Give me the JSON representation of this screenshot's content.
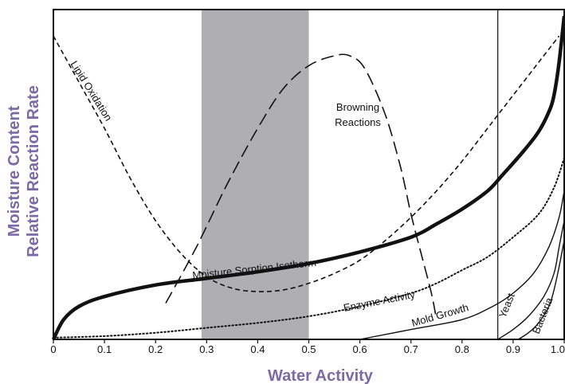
{
  "chart_data": {
    "type": "line",
    "title": "",
    "xlabel": "Water Activity",
    "ylabel_lines": [
      "Moisture Content",
      "Relative Reaction Rate"
    ],
    "xlim": [
      0,
      1.0
    ],
    "x_ticks": [
      "0",
      "0.1",
      "0.2",
      "0.3",
      "0.4",
      "0.5",
      "0.6",
      "0.7",
      "0.8",
      "0.9",
      "1.0"
    ],
    "colors": {
      "axis_title": "#7b6aa6",
      "shaded_band": "#aeaeb3",
      "line": "#111111"
    },
    "shaded_band": {
      "x_start": 0.29,
      "x_end": 0.5
    },
    "vertical_reference": {
      "x": 0.87
    },
    "series": [
      {
        "name": "Lipid Oxidation",
        "style": "short-dash",
        "points": [
          [
            0.0,
            0.92
          ],
          [
            0.05,
            0.78
          ],
          [
            0.1,
            0.64
          ],
          [
            0.15,
            0.49
          ],
          [
            0.2,
            0.36
          ],
          [
            0.25,
            0.26
          ],
          [
            0.3,
            0.19
          ],
          [
            0.35,
            0.155
          ],
          [
            0.4,
            0.145
          ],
          [
            0.45,
            0.15
          ],
          [
            0.5,
            0.17
          ],
          [
            0.55,
            0.2
          ],
          [
            0.6,
            0.24
          ],
          [
            0.65,
            0.3
          ],
          [
            0.7,
            0.37
          ],
          [
            0.75,
            0.45
          ],
          [
            0.8,
            0.54
          ],
          [
            0.85,
            0.64
          ],
          [
            0.9,
            0.74
          ],
          [
            0.95,
            0.84
          ],
          [
            0.99,
            0.92
          ]
        ]
      },
      {
        "name": "Browning Reactions",
        "style": "long-dash",
        "points": [
          [
            0.22,
            0.11
          ],
          [
            0.28,
            0.28
          ],
          [
            0.34,
            0.47
          ],
          [
            0.4,
            0.64
          ],
          [
            0.45,
            0.76
          ],
          [
            0.5,
            0.83
          ],
          [
            0.55,
            0.86
          ],
          [
            0.58,
            0.86
          ],
          [
            0.61,
            0.82
          ],
          [
            0.65,
            0.68
          ],
          [
            0.68,
            0.52
          ],
          [
            0.7,
            0.38
          ],
          [
            0.72,
            0.26
          ],
          [
            0.74,
            0.14
          ],
          [
            0.75,
            0.06
          ]
        ]
      },
      {
        "name": "Moisture Sorption Isotherm",
        "style": "thick-solid",
        "points": [
          [
            0.0,
            0.0
          ],
          [
            0.02,
            0.06
          ],
          [
            0.05,
            0.1
          ],
          [
            0.1,
            0.13
          ],
          [
            0.2,
            0.165
          ],
          [
            0.3,
            0.185
          ],
          [
            0.4,
            0.205
          ],
          [
            0.5,
            0.23
          ],
          [
            0.6,
            0.265
          ],
          [
            0.7,
            0.31
          ],
          [
            0.75,
            0.35
          ],
          [
            0.8,
            0.395
          ],
          [
            0.85,
            0.45
          ],
          [
            0.88,
            0.5
          ],
          [
            0.92,
            0.57
          ],
          [
            0.95,
            0.63
          ],
          [
            0.97,
            0.69
          ],
          [
            0.98,
            0.74
          ],
          [
            0.99,
            0.84
          ],
          [
            1.0,
            0.98
          ]
        ]
      },
      {
        "name": "Enzyme Activity",
        "style": "dotted",
        "points": [
          [
            0.0,
            0.005
          ],
          [
            0.1,
            0.01
          ],
          [
            0.2,
            0.02
          ],
          [
            0.3,
            0.035
          ],
          [
            0.4,
            0.05
          ],
          [
            0.5,
            0.07
          ],
          [
            0.6,
            0.1
          ],
          [
            0.7,
            0.14
          ],
          [
            0.75,
            0.17
          ],
          [
            0.8,
            0.21
          ],
          [
            0.85,
            0.25
          ],
          [
            0.9,
            0.31
          ],
          [
            0.95,
            0.38
          ],
          [
            0.98,
            0.46
          ],
          [
            1.0,
            0.55
          ]
        ]
      },
      {
        "name": "Mold Growth",
        "style": "thin-solid",
        "points": [
          [
            0.6,
            0.0
          ],
          [
            0.7,
            0.03
          ],
          [
            0.8,
            0.06
          ],
          [
            0.86,
            0.1
          ],
          [
            0.9,
            0.14
          ],
          [
            0.94,
            0.2
          ],
          [
            0.97,
            0.28
          ],
          [
            0.99,
            0.37
          ],
          [
            1.0,
            0.45
          ]
        ]
      },
      {
        "name": "Yeast",
        "style": "thin-solid",
        "points": [
          [
            0.87,
            0.0
          ],
          [
            0.9,
            0.03
          ],
          [
            0.93,
            0.07
          ],
          [
            0.96,
            0.13
          ],
          [
            0.98,
            0.2
          ],
          [
            0.99,
            0.28
          ],
          [
            1.0,
            0.36
          ]
        ]
      },
      {
        "name": "Bacteria",
        "style": "thin-solid",
        "points": [
          [
            0.91,
            0.0
          ],
          [
            0.93,
            0.02
          ],
          [
            0.95,
            0.05
          ],
          [
            0.97,
            0.1
          ],
          [
            0.98,
            0.15
          ],
          [
            0.99,
            0.22
          ],
          [
            1.0,
            0.3
          ]
        ]
      }
    ]
  }
}
